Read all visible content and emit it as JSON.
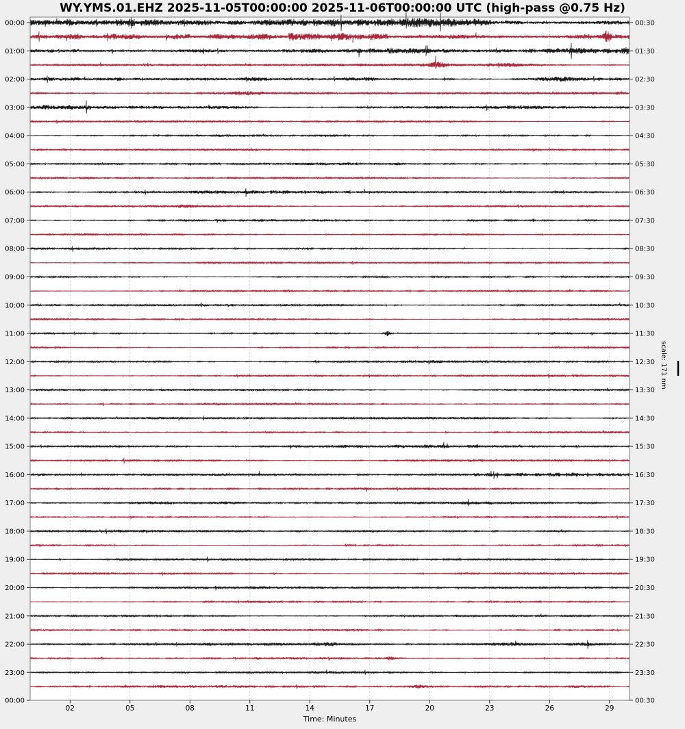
{
  "colors": {
    "background": "#efefef",
    "plot_bg": "#ffffff",
    "spine": "#7a7a7a",
    "grid": "#c9c9c9",
    "tick": "#333333",
    "label_text": "#000000",
    "trace_black": "#1b1b1b",
    "trace_crimson": "#a62a3c"
  },
  "chart_data": {
    "type": "line",
    "subtype": "seismogram-dayplot-helicorder",
    "title": "WY.YMS.01.EHZ 2025-11-05T00:00:00 2025-11-06T00:00:00 UTC (high-pass @0.75 Hz)",
    "station": "WY.YMS.01.EHZ",
    "time_start_utc": "2025-11-05T00:00:00",
    "time_end_utc": "2025-11-06T00:00:00",
    "filter": "high-pass @0.75 Hz",
    "xlabel": "Time: Minutes",
    "scale_label": "scale: 171 nm",
    "minutes_per_line": 30,
    "grid": true,
    "legend": "none",
    "x_axis": {
      "label": "Time: Minutes",
      "range_minutes": [
        0,
        30
      ],
      "tick_minutes": [
        2,
        5,
        8,
        11,
        14,
        17,
        20,
        23,
        26,
        29
      ],
      "tick_labels": [
        "02",
        "05",
        "08",
        "11",
        "14",
        "17",
        "20",
        "23",
        "26",
        "29"
      ]
    },
    "y_axis": {
      "left_labels": [
        "00:00",
        "01:00",
        "02:00",
        "03:00",
        "04:00",
        "05:00",
        "06:00",
        "07:00",
        "08:00",
        "09:00",
        "10:00",
        "11:00",
        "12:00",
        "13:00",
        "14:00",
        "15:00",
        "16:00",
        "17:00",
        "18:00",
        "19:00",
        "20:00",
        "21:00",
        "22:00",
        "23:00",
        "00:00"
      ],
      "right_labels": [
        "00:30",
        "01:30",
        "02:30",
        "03:30",
        "04:30",
        "05:30",
        "06:30",
        "07:30",
        "08:30",
        "09:30",
        "10:30",
        "11:30",
        "12:30",
        "13:30",
        "14:30",
        "15:30",
        "16:30",
        "17:30",
        "18:30",
        "19:30",
        "20:30",
        "21:30",
        "22:30",
        "23:30",
        "00:30"
      ]
    },
    "rows": [
      {
        "start": "00:00",
        "end": "00:30",
        "color": "black",
        "amp": 5.2,
        "bursts": [
          [
            0.02,
            1.5,
            40
          ],
          [
            0.45,
            1.2,
            50
          ],
          [
            0.7,
            2.2,
            50
          ],
          [
            0.95,
            1.2,
            40
          ]
        ]
      },
      {
        "start": "00:30",
        "end": "01:00",
        "color": "crimson",
        "amp": 4.8,
        "bursts": [
          [
            0.73,
            1.5,
            40
          ],
          [
            0.93,
            1.5,
            15
          ],
          [
            0.963,
            8.5,
            4
          ]
        ]
      },
      {
        "start": "01:00",
        "end": "01:30",
        "color": "black",
        "amp": 3.4,
        "bursts": [
          [
            0.28,
            2.0,
            30
          ],
          [
            0.62,
            1.0,
            40
          ],
          [
            0.9,
            1.5,
            25
          ],
          [
            0.997,
            3.0,
            5
          ]
        ]
      },
      {
        "start": "01:30",
        "end": "02:00",
        "color": "crimson",
        "amp": 2.0,
        "bursts": [
          [
            0.68,
            2.5,
            8
          ],
          [
            0.8,
            1.5,
            25
          ]
        ]
      },
      {
        "start": "02:00",
        "end": "02:30",
        "color": "black",
        "amp": 2.3,
        "bursts": [
          [
            0.27,
            1.2,
            28
          ],
          [
            0.38,
            1.5,
            18
          ],
          [
            0.56,
            1.2,
            22
          ],
          [
            0.88,
            2.6,
            28
          ]
        ]
      },
      {
        "start": "02:30",
        "end": "03:00",
        "color": "crimson",
        "amp": 2.0,
        "bursts": [
          [
            0.36,
            2.0,
            16
          ]
        ]
      },
      {
        "start": "03:00",
        "end": "03:30",
        "color": "black",
        "amp": 2.4,
        "bursts": [
          [
            0.04,
            1.2,
            45
          ],
          [
            0.33,
            1.5,
            22
          ],
          [
            0.82,
            1.5,
            18
          ]
        ]
      },
      {
        "start": "03:30",
        "end": "04:00",
        "color": "crimson",
        "amp": 1.5,
        "bursts": [
          [
            0.3,
            0.8,
            28
          ]
        ]
      },
      {
        "start": "04:00",
        "end": "04:30",
        "color": "black",
        "amp": 1.3,
        "bursts": [
          [
            0.5,
            0.8,
            14
          ]
        ]
      },
      {
        "start": "04:30",
        "end": "05:00",
        "color": "crimson",
        "amp": 1.5,
        "bursts": []
      },
      {
        "start": "05:00",
        "end": "05:30",
        "color": "black",
        "amp": 1.7,
        "bursts": []
      },
      {
        "start": "05:30",
        "end": "06:00",
        "color": "crimson",
        "amp": 1.4,
        "bursts": []
      },
      {
        "start": "06:00",
        "end": "06:30",
        "color": "black",
        "amp": 2.1,
        "bursts": []
      },
      {
        "start": "06:30",
        "end": "07:00",
        "color": "crimson",
        "amp": 1.6,
        "bursts": [
          [
            0.26,
            1.2,
            18
          ]
        ]
      },
      {
        "start": "07:00",
        "end": "07:30",
        "color": "black",
        "amp": 1.5,
        "bursts": []
      },
      {
        "start": "07:30",
        "end": "08:00",
        "color": "crimson",
        "amp": 1.3,
        "bursts": []
      },
      {
        "start": "08:00",
        "end": "08:30",
        "color": "black",
        "amp": 1.3,
        "bursts": []
      },
      {
        "start": "08:30",
        "end": "09:00",
        "color": "crimson",
        "amp": 1.4,
        "bursts": []
      },
      {
        "start": "09:00",
        "end": "09:30",
        "color": "black",
        "amp": 1.3,
        "bursts": []
      },
      {
        "start": "09:30",
        "end": "10:00",
        "color": "crimson",
        "amp": 1.2,
        "bursts": []
      },
      {
        "start": "10:00",
        "end": "10:30",
        "color": "black",
        "amp": 1.7,
        "bursts": []
      },
      {
        "start": "10:30",
        "end": "11:00",
        "color": "crimson",
        "amp": 1.3,
        "bursts": []
      },
      {
        "start": "11:00",
        "end": "11:30",
        "color": "black",
        "amp": 1.3,
        "bursts": [
          [
            0.596,
            4.5,
            2.5
          ]
        ]
      },
      {
        "start": "11:30",
        "end": "12:00",
        "color": "crimson",
        "amp": 1.2,
        "bursts": []
      },
      {
        "start": "12:00",
        "end": "12:30",
        "color": "black",
        "amp": 1.8,
        "bursts": []
      },
      {
        "start": "12:30",
        "end": "13:00",
        "color": "crimson",
        "amp": 1.5,
        "bursts": []
      },
      {
        "start": "13:00",
        "end": "13:30",
        "color": "black",
        "amp": 1.6,
        "bursts": []
      },
      {
        "start": "13:30",
        "end": "14:00",
        "color": "crimson",
        "amp": 1.3,
        "bursts": []
      },
      {
        "start": "14:00",
        "end": "14:30",
        "color": "black",
        "amp": 1.8,
        "bursts": []
      },
      {
        "start": "14:30",
        "end": "15:00",
        "color": "crimson",
        "amp": 1.3,
        "bursts": []
      },
      {
        "start": "15:00",
        "end": "15:30",
        "color": "black",
        "amp": 2.1,
        "bursts": []
      },
      {
        "start": "15:30",
        "end": "16:00",
        "color": "crimson",
        "amp": 1.8,
        "bursts": []
      },
      {
        "start": "16:00",
        "end": "16:30",
        "color": "black",
        "amp": 2.5,
        "bursts": []
      },
      {
        "start": "16:30",
        "end": "17:00",
        "color": "crimson",
        "amp": 1.5,
        "bursts": []
      },
      {
        "start": "17:00",
        "end": "17:30",
        "color": "black",
        "amp": 1.8,
        "bursts": [
          [
            0.21,
            1.5,
            18
          ],
          [
            0.33,
            1.4,
            14
          ]
        ]
      },
      {
        "start": "17:30",
        "end": "18:00",
        "color": "crimson",
        "amp": 1.2,
        "bursts": []
      },
      {
        "start": "18:00",
        "end": "18:30",
        "color": "black",
        "amp": 1.8,
        "bursts": [
          [
            0.88,
            1.2,
            14
          ]
        ]
      },
      {
        "start": "18:30",
        "end": "19:00",
        "color": "crimson",
        "amp": 1.2,
        "bursts": []
      },
      {
        "start": "19:00",
        "end": "19:30",
        "color": "black",
        "amp": 1.5,
        "bursts": [
          [
            0.165,
            1.3,
            9
          ]
        ]
      },
      {
        "start": "19:30",
        "end": "20:00",
        "color": "crimson",
        "amp": 1.5,
        "bursts": [
          [
            0.1,
            0.8,
            35
          ]
        ]
      },
      {
        "start": "20:00",
        "end": "20:30",
        "color": "black",
        "amp": 1.8,
        "bursts": []
      },
      {
        "start": "20:30",
        "end": "21:00",
        "color": "crimson",
        "amp": 1.2,
        "bursts": []
      },
      {
        "start": "21:00",
        "end": "21:30",
        "color": "black",
        "amp": 1.4,
        "bursts": []
      },
      {
        "start": "21:30",
        "end": "22:00",
        "color": "crimson",
        "amp": 1.5,
        "bursts": []
      },
      {
        "start": "22:00",
        "end": "22:30",
        "color": "black",
        "amp": 1.9,
        "bursts": [
          [
            0.5,
            1.5,
            16
          ],
          [
            0.79,
            1.8,
            25
          ],
          [
            0.93,
            1.8,
            20
          ]
        ]
      },
      {
        "start": "22:30",
        "end": "23:00",
        "color": "crimson",
        "amp": 1.3,
        "bursts": [
          [
            0.38,
            1.8,
            3
          ],
          [
            0.6,
            2.2,
            4
          ]
        ]
      },
      {
        "start": "23:00",
        "end": "23:30",
        "color": "black",
        "amp": 1.5,
        "bursts": []
      },
      {
        "start": "23:30",
        "end": "00:00",
        "color": "crimson",
        "amp": 1.7,
        "bursts": [
          [
            0.65,
            2.0,
            10
          ],
          [
            0.92,
            1.0,
            20
          ]
        ]
      }
    ]
  }
}
